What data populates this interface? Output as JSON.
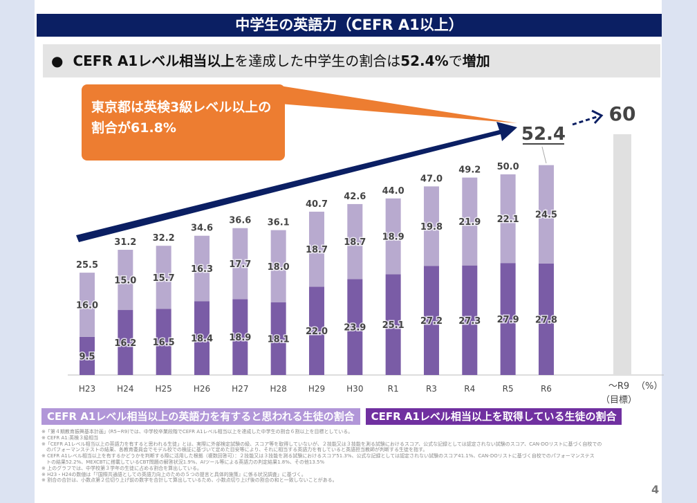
{
  "title": "中学生の英語力（CEFR A1以上）",
  "subtitle": {
    "bullet": "●",
    "bold1": "CEFR A1レベル相当以上",
    "mid": "を達成した中学生の割合は",
    "bold2": "52.4%",
    "end": "で",
    "bold3": "増加"
  },
  "callout": "東京都は英検3級レベル以上の割合が61.8%",
  "legend": {
    "top": "CEFR A1レベル相当以上の英語力を有すると思われる生徒の割合",
    "bottom": "CEFR A1レベル相当以上を取得している生徒の割合"
  },
  "chart_data": {
    "type": "bar",
    "stacked": true,
    "categories": [
      "H23",
      "H24",
      "H25",
      "H26",
      "H27",
      "H28",
      "H29",
      "H30",
      "R1",
      "R3",
      "R4",
      "R5",
      "R6"
    ],
    "series": [
      {
        "name": "CEFR A1レベル相当以上を取得している生徒の割合",
        "color": "#7a5ca6",
        "values": [
          9.5,
          16.2,
          16.5,
          18.4,
          18.9,
          18.1,
          22.0,
          23.9,
          25.1,
          27.2,
          27.3,
          27.9,
          27.8
        ]
      },
      {
        "name": "CEFR A1レベル相当以上の英語力を有すると思われる生徒の割合",
        "color": "#b8aacf",
        "values": [
          16.0,
          15.0,
          15.7,
          16.3,
          17.7,
          18.0,
          18.7,
          18.7,
          18.9,
          19.8,
          21.9,
          22.1,
          24.5
        ]
      }
    ],
    "totals": [
      "25.5",
      "31.2",
      "32.2",
      "34.6",
      "36.6",
      "36.1",
      "40.7",
      "42.6",
      "44.0",
      "47.0",
      "49.2",
      "50.0",
      "52.4"
    ],
    "target": {
      "category": "～R9",
      "sub": "（目標）",
      "value": 60,
      "label": "60",
      "color": "#e0e0e0"
    },
    "unit": "（%）",
    "ylim": [
      0,
      60
    ]
  },
  "notes": [
    "※「第４期教育振興基本計画」(R5~R9)では、中学校卒業段階でCEFR A1レベル相当以上を達成した中学生の割合６割以上を目標としている。",
    "※ CEFR A1:英検３級相当",
    "※「CEFR A1レベル相当以上の英語力を有すると思われる生徒」とは、実際に外部検定試験の級、スコア等を取得していないが、２技能又は３技能を測る試験におけるスコア、公式な記録としては認定されない試験のスコア、CAN-DOリストに基づく自校での",
    "　のパフォーマンステストの結果、各教育委員会でモデル校での検証に基づいて定めた目安等により、それに相当する英語力を有していると英語担当教師が判断する生徒を指す。",
    "※ CEFR A1レベル相当以上を有するかどうかを判断する際に活用した根拠（複数回答可）：２技能又は３技能を測る試験におけるスコア51.3%、公式な記録としては認定されない試験のスコア41.1%、CAN-DOリストに基づく自校でのパフォーマンステス",
    "　トの結果52.2%、MEXCBTに搭載しているCBT問題の解答状況1.9%、AIツール等による英語力の判定結果1.8%、その他13.5%",
    "※ 上のグラフでは、中学校第３学年の生徒に占める割合を算出している。",
    "※ H23・H24の数値は「『国際共通語としての英語力向上のための５つの提言と具体的施策』に係る状況調査」に基づく。",
    "※ 割合の合計は、小数点第２位切り上げ前の数字を合計して算出しているため、小数点切り上げ後の割合の和と一致しないことがある。"
  ],
  "page": "4"
}
